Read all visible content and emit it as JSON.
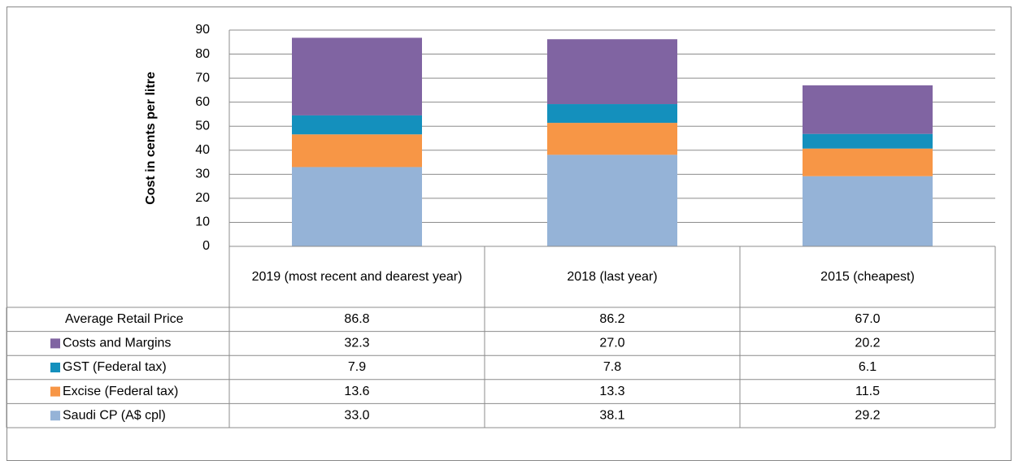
{
  "chart_data": {
    "type": "stacked-bar",
    "y_label": "Cost in cents per litre",
    "categories": [
      "2019 (most recent and dearest year)",
      "2018 (last year)",
      "2015 (cheapest)"
    ],
    "series": [
      {
        "name": "Saudi CP (A$ cpl)",
        "color": "#95b3d7",
        "values": [
          33.0,
          38.1,
          29.2
        ],
        "value_labels": [
          "33.0",
          "38.1",
          "29.2"
        ]
      },
      {
        "name": "Excise (Federal tax)",
        "color": "#f79646",
        "values": [
          13.6,
          13.3,
          11.5
        ],
        "value_labels": [
          "13.6",
          "13.3",
          "11.5"
        ]
      },
      {
        "name": "GST (Federal tax)",
        "color": "#1490bd",
        "values": [
          7.9,
          7.8,
          6.1
        ],
        "value_labels": [
          "7.9",
          "7.8",
          "6.1"
        ]
      },
      {
        "name": "Costs and Margins",
        "color": "#8064a2",
        "values": [
          32.3,
          27.0,
          20.2
        ],
        "value_labels": [
          "32.3",
          "27.0",
          "20.2"
        ]
      }
    ],
    "total": {
      "name": "Average Retail Price",
      "values": [
        86.8,
        86.2,
        67.0
      ],
      "value_labels": [
        "86.8",
        "86.2",
        "67.0"
      ]
    },
    "ylim": [
      0,
      90
    ],
    "yticks": [
      0,
      10,
      20,
      30,
      40,
      50,
      60,
      70,
      80,
      90
    ],
    "grid": true
  }
}
